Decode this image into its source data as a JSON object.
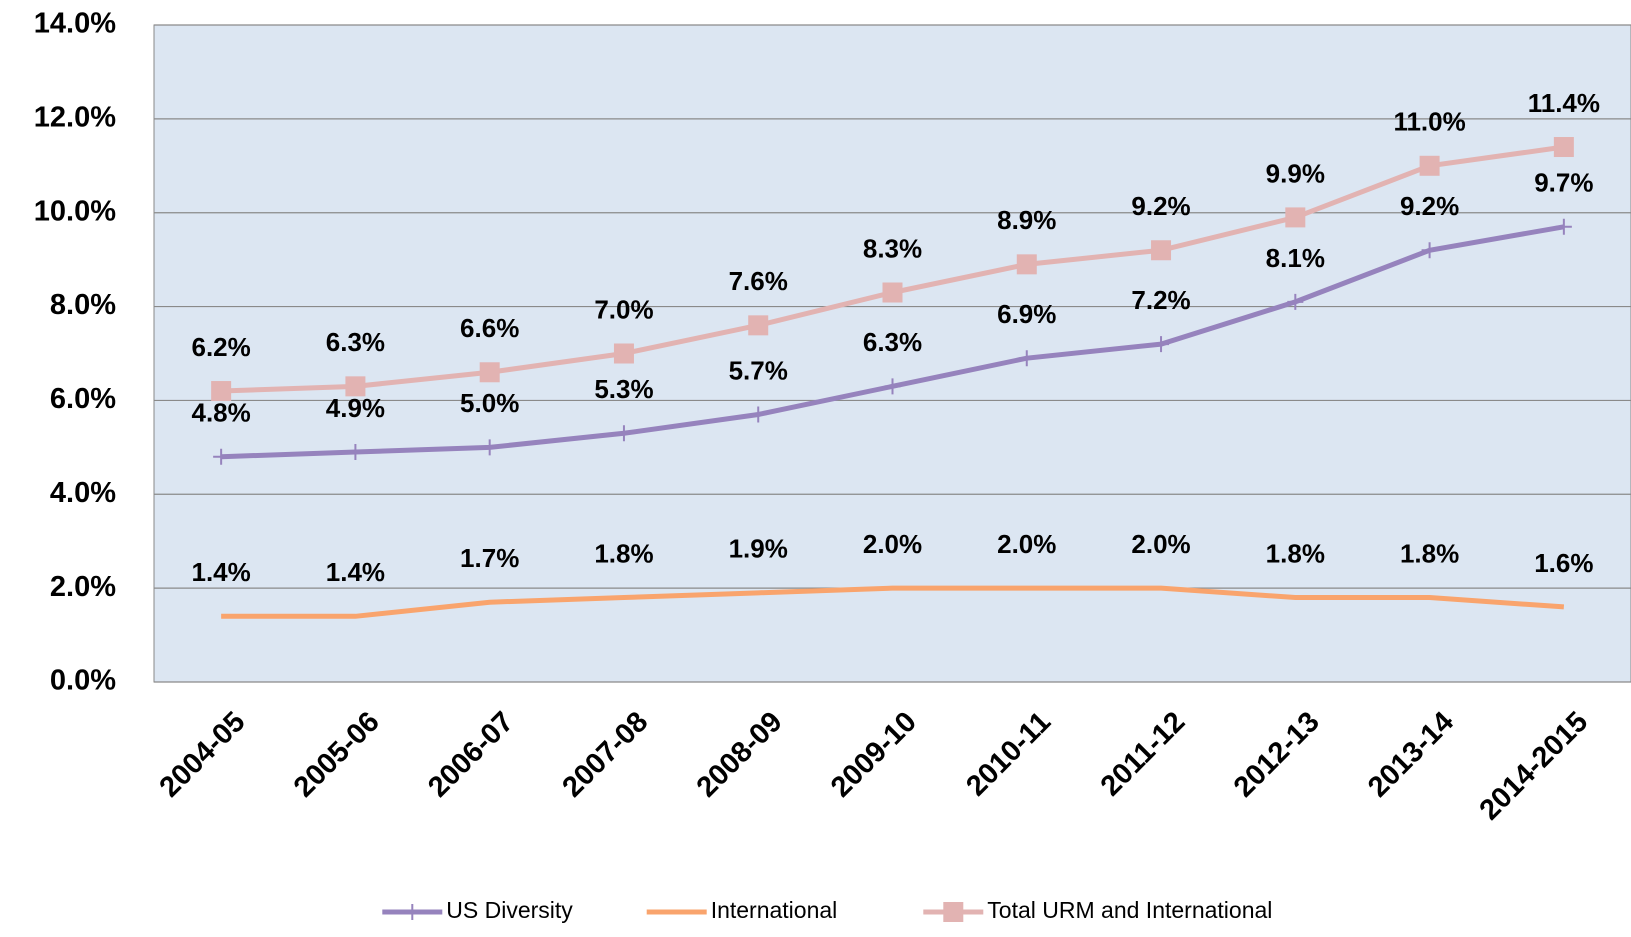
{
  "chart_data": {
    "type": "line",
    "categories": [
      "2004-05",
      "2005-06",
      "2006-07",
      "2007-08",
      "2008-09",
      "2009-10",
      "2010-11",
      "2011-12",
      "2012-13",
      "2013-14",
      "2014-2015"
    ],
    "series": [
      {
        "name": "US Diversity",
        "color": "#9683bd",
        "marker": "plus",
        "values": [
          4.8,
          4.9,
          5.0,
          5.3,
          5.7,
          6.3,
          6.9,
          7.2,
          8.1,
          9.2,
          9.7
        ],
        "value_labels": [
          "4.8%",
          "4.9%",
          "5.0%",
          "5.3%",
          "5.7%",
          "6.3%",
          "6.9%",
          "7.2%",
          "8.1%",
          "9.2%",
          "9.7%"
        ]
      },
      {
        "name": "International",
        "color": "#f9a46d",
        "marker": "none",
        "values": [
          1.4,
          1.4,
          1.7,
          1.8,
          1.9,
          2.0,
          2.0,
          2.0,
          1.8,
          1.8,
          1.6
        ],
        "value_labels": [
          "1.4%",
          "1.4%",
          "1.7%",
          "1.8%",
          "1.9%",
          "2.0%",
          "2.0%",
          "2.0%",
          "1.8%",
          "1.8%",
          "1.6%"
        ]
      },
      {
        "name": "Total URM and International",
        "color": "#e2b3b2",
        "marker": "square",
        "values": [
          6.2,
          6.3,
          6.6,
          7.0,
          7.6,
          8.3,
          8.9,
          9.2,
          9.9,
          11.0,
          11.4
        ],
        "value_labels": [
          "6.2%",
          "6.3%",
          "6.6%",
          "7.0%",
          "7.6%",
          "8.3%",
          "8.9%",
          "9.2%",
          "9.9%",
          "11.0%",
          "11.4%"
        ]
      }
    ],
    "ylim": [
      0,
      14
    ],
    "yticks": [
      {
        "value": 0,
        "label": "0.0%"
      },
      {
        "value": 2,
        "label": "2.0%"
      },
      {
        "value": 4,
        "label": "4.0%"
      },
      {
        "value": 6,
        "label": "6.0%"
      },
      {
        "value": 8,
        "label": "8.0%"
      },
      {
        "value": 10,
        "label": "10.0%"
      },
      {
        "value": 12,
        "label": "12.0%"
      },
      {
        "value": 14,
        "label": "14.0%"
      }
    ],
    "grid": true,
    "legend": "bottom",
    "background": "#dce6f2"
  }
}
